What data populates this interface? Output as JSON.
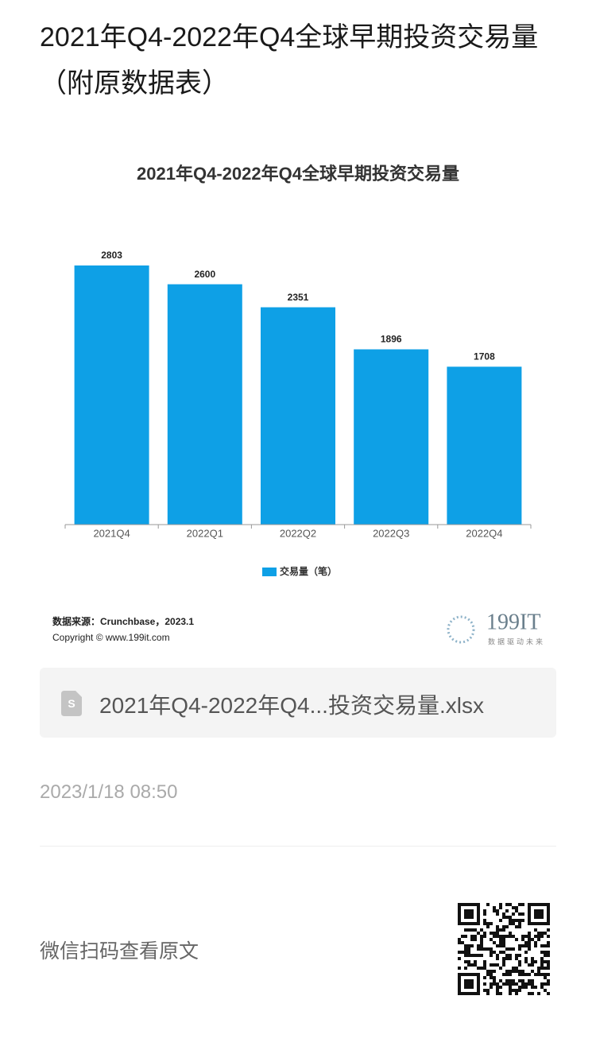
{
  "header": {
    "title": "2021年Q4-2022年Q4全球早期投资交易量（附原数据表）"
  },
  "chart_data": {
    "type": "bar",
    "title": "2021年Q4-2022年Q4全球早期投资交易量",
    "categories": [
      "2021Q4",
      "2022Q1",
      "2022Q2",
      "2022Q3",
      "2022Q4"
    ],
    "series": [
      {
        "name": "交易量（笔）",
        "color": "#0ea0e6",
        "values": [
          2803,
          2600,
          2351,
          1896,
          1708
        ]
      }
    ],
    "source": "数据来源：Crunchbase，2023.1",
    "copyright": "Copyright © www.199it.com",
    "logo": {
      "name": "199IT",
      "tagline": "数据驱动未来"
    }
  },
  "attachment": {
    "file_name": "2021年Q4-2022年Q4...投资交易量.xlsx"
  },
  "date": "2023/1/18 08:50",
  "footer": {
    "text": "微信扫码查看原文"
  }
}
